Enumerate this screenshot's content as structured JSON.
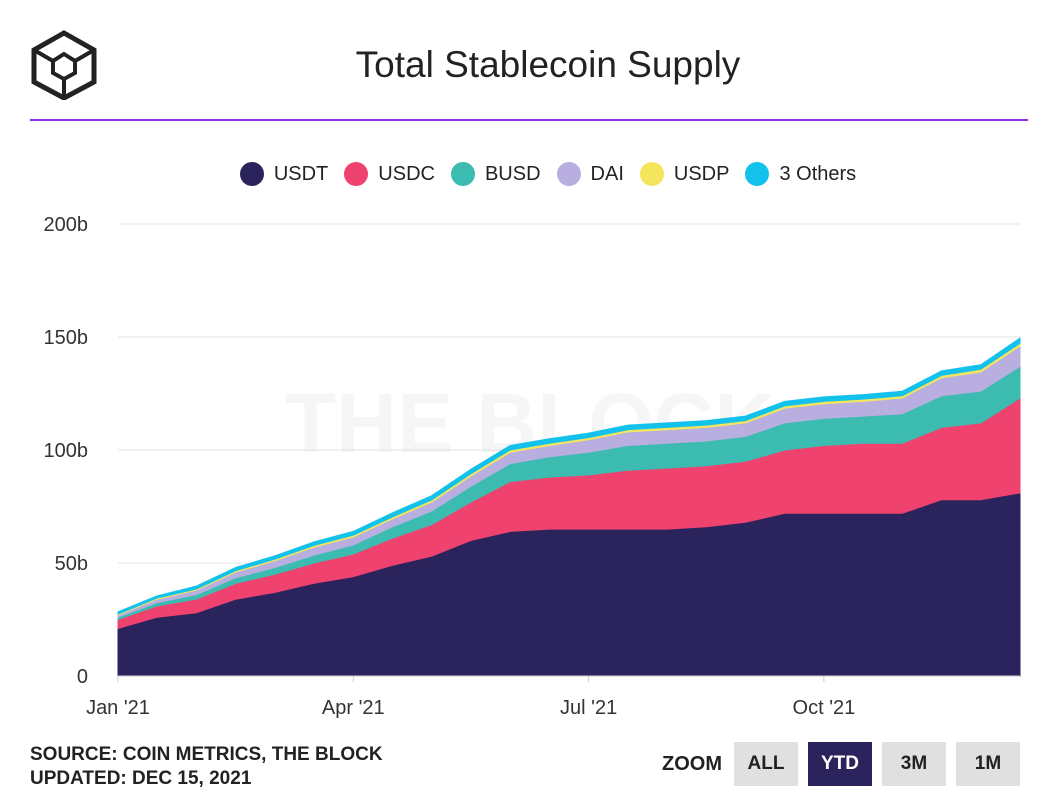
{
  "header": {
    "title": "Total Stablecoin Supply"
  },
  "watermark": "THE BLOCK",
  "footer": {
    "source": "SOURCE: COIN METRICS, THE BLOCK",
    "updated": "UPDATED: DEC 15, 2021"
  },
  "zoom": {
    "label": "ZOOM",
    "buttons": [
      "ALL",
      "YTD",
      "3M",
      "1M"
    ],
    "active": "YTD"
  },
  "colors": {
    "USDT": "#2b245c",
    "USDC": "#ef426f",
    "BUSD": "#3cbcb1",
    "DAI": "#b8aee0",
    "USDP": "#f5e55c",
    "3 Others": "#13c2ec",
    "accent": "#8e2de2"
  },
  "chart_data": {
    "type": "area",
    "stacked": true,
    "title": "Total Stablecoin Supply",
    "xlabel": "",
    "ylabel": "",
    "ylim": [
      0,
      200
    ],
    "yticks": [
      0,
      50,
      100,
      150,
      200
    ],
    "ytick_labels": [
      "0",
      "50b",
      "100b",
      "150b",
      "200b"
    ],
    "xtick_labels": [
      "Jan '21",
      "Apr '21",
      "Jul '21",
      "Oct '21"
    ],
    "xtick_positions": [
      0,
      3,
      6,
      9
    ],
    "x": [
      0,
      0.5,
      1,
      1.5,
      2,
      2.5,
      3,
      3.5,
      4,
      4.5,
      5,
      5.5,
      6,
      6.5,
      7,
      7.5,
      8,
      8.5,
      9,
      9.5,
      10,
      10.5,
      11,
      11.5
    ],
    "legend_position": "top-center",
    "grid": true,
    "series": [
      {
        "name": "USDT",
        "values": [
          21,
          26,
          28,
          34,
          37,
          41,
          44,
          49,
          53,
          60,
          64,
          65,
          65,
          65,
          65,
          66,
          68,
          72,
          72,
          72,
          72,
          78,
          78,
          81
        ]
      },
      {
        "name": "USDC",
        "values": [
          4,
          5,
          6,
          7,
          8,
          9,
          10,
          12,
          14,
          17,
          22,
          23,
          24,
          26,
          27,
          27,
          27,
          28,
          30,
          31,
          31,
          32,
          34,
          42
        ]
      },
      {
        "name": "BUSD",
        "values": [
          1,
          1.5,
          2,
          2.5,
          3,
          3.5,
          4,
          5,
          6,
          7,
          8,
          9,
          10,
          11,
          11,
          11,
          11,
          12,
          12,
          12,
          13,
          14,
          14,
          14
        ]
      },
      {
        "name": "DAI",
        "values": [
          1,
          1.5,
          2,
          2.5,
          3,
          3.5,
          3.5,
          3.5,
          4,
          4.5,
          5,
          5,
          5.5,
          6,
          6,
          6,
          6,
          6.5,
          6.5,
          6.5,
          7,
          8,
          8.5,
          9
        ]
      },
      {
        "name": "USDP",
        "values": [
          0.4,
          0.5,
          0.5,
          0.6,
          0.7,
          0.8,
          0.8,
          0.9,
          0.9,
          1,
          1,
          1,
          1,
          1,
          1,
          1,
          1,
          1,
          1,
          1,
          1,
          1,
          1.2,
          1.2
        ]
      },
      {
        "name": "3 Others",
        "values": [
          1,
          1,
          1.3,
          1.4,
          1.5,
          1.6,
          1.7,
          1.8,
          1.9,
          2,
          2,
          2,
          2,
          2,
          2,
          2,
          2,
          2,
          2,
          2,
          2,
          2,
          2,
          2.3
        ]
      }
    ]
  }
}
